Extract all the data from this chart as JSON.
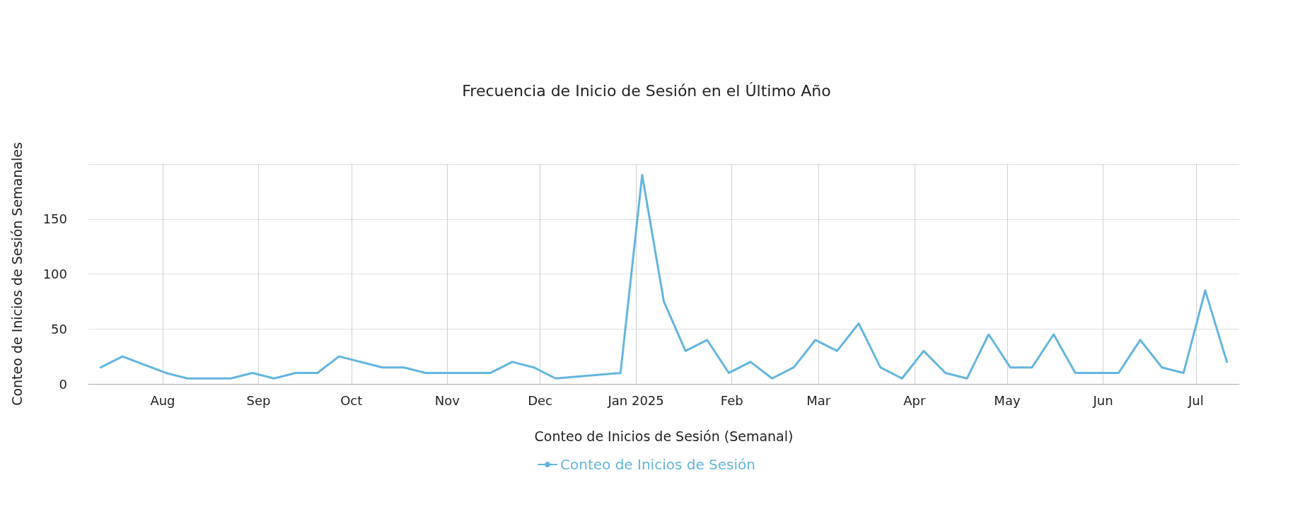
{
  "chart_data": {
    "type": "line",
    "title": "Frecuencia de Inicio de Sesión en el Último Año",
    "xlabel": "Conteo de Inicios de Sesión (Semanal)",
    "ylabel": "Conteo de Inicios de Sesión Semanales",
    "x": [
      "2024-07-12",
      "2024-07-19",
      "2024-08-02",
      "2024-08-09",
      "2024-08-16",
      "2024-08-23",
      "2024-08-30",
      "2024-09-06",
      "2024-09-13",
      "2024-09-20",
      "2024-09-27",
      "2024-10-11",
      "2024-10-18",
      "2024-10-25",
      "2024-11-01",
      "2024-11-08",
      "2024-11-15",
      "2024-11-22",
      "2024-11-29",
      "2024-12-06",
      "2024-12-27",
      "2025-01-03",
      "2025-01-10",
      "2025-01-17",
      "2025-01-24",
      "2025-01-31",
      "2025-02-07",
      "2025-02-14",
      "2025-02-21",
      "2025-02-28",
      "2025-03-07",
      "2025-03-14",
      "2025-03-21",
      "2025-03-28",
      "2025-04-04",
      "2025-04-11",
      "2025-04-18",
      "2025-04-25",
      "2025-05-02",
      "2025-05-09",
      "2025-05-16",
      "2025-05-23",
      "2025-05-30",
      "2025-06-06",
      "2025-06-13",
      "2025-06-20",
      "2025-06-27",
      "2025-07-04",
      "2025-07-11"
    ],
    "series": [
      {
        "name": "Conteo de Inicios de Sesión",
        "color": "#64b5e0",
        "values": [
          15,
          25,
          10,
          5,
          5,
          5,
          10,
          5,
          10,
          10,
          25,
          15,
          15,
          10,
          10,
          10,
          10,
          20,
          15,
          5,
          10,
          190,
          75,
          30,
          40,
          10,
          20,
          5,
          15,
          40,
          30,
          55,
          15,
          5,
          30,
          10,
          5,
          45,
          15,
          15,
          45,
          10,
          10,
          10,
          40,
          15,
          10,
          85,
          20
        ]
      }
    ],
    "xlim": [
      "2024-07-08",
      "2025-07-15"
    ],
    "xticks": [
      {
        "value": "2024-08-01",
        "label": "Aug"
      },
      {
        "value": "2024-09-01",
        "label": "Sep"
      },
      {
        "value": "2024-10-01",
        "label": "Oct"
      },
      {
        "value": "2024-11-01",
        "label": "Nov"
      },
      {
        "value": "2024-12-01",
        "label": "Dec"
      },
      {
        "value": "2025-01-01",
        "label": "Jan 2025"
      },
      {
        "value": "2025-02-01",
        "label": "Feb"
      },
      {
        "value": "2025-03-01",
        "label": "Mar"
      },
      {
        "value": "2025-04-01",
        "label": "Apr"
      },
      {
        "value": "2025-05-01",
        "label": "May"
      },
      {
        "value": "2025-06-01",
        "label": "Jun"
      },
      {
        "value": "2025-07-01",
        "label": "Jul"
      }
    ],
    "ylim": [
      0,
      200
    ],
    "yticks": [
      0,
      50,
      100,
      150,
      {
        "value": 200,
        "label": null
      }
    ],
    "grid": true,
    "legend": "bottom",
    "line_style": "solid"
  }
}
